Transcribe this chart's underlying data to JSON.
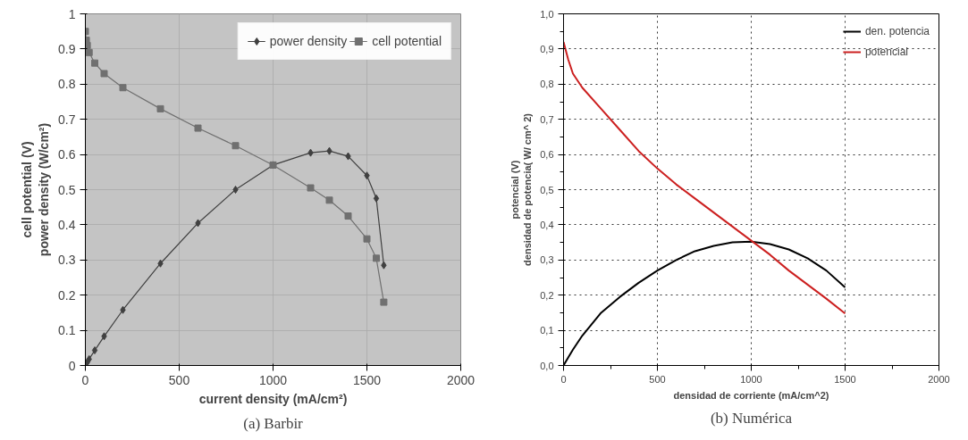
{
  "chart_data": [
    {
      "type": "line",
      "title": "(a) Barbir",
      "xlabel": "current density (mA/cm²)",
      "ylabel": "cell potential (V)\npower density (W/cm²)",
      "x": [
        0,
        5,
        10,
        20,
        50,
        100,
        200,
        400,
        600,
        800,
        1000,
        1200,
        1300,
        1400,
        1500,
        1550,
        1590
      ],
      "series": [
        {
          "name": "power density",
          "color": "#404040",
          "marker": "diamond",
          "values": [
            0,
            0.005,
            0.009,
            0.018,
            0.043,
            0.083,
            0.158,
            0.29,
            0.405,
            0.5,
            0.57,
            0.605,
            0.61,
            0.595,
            0.54,
            0.475,
            0.285
          ]
        },
        {
          "name": "cell potential",
          "color": "#707070",
          "marker": "square",
          "values": [
            0.95,
            0.925,
            0.91,
            0.89,
            0.86,
            0.83,
            0.79,
            0.73,
            0.675,
            0.625,
            0.57,
            0.505,
            0.47,
            0.425,
            0.36,
            0.305,
            0.18
          ]
        }
      ],
      "xlim": [
        0,
        2000
      ],
      "ylim": [
        0,
        1
      ],
      "xticks": [
        0,
        500,
        1000,
        1500,
        2000
      ],
      "yticks": [
        0,
        0.1,
        0.2,
        0.3,
        0.4,
        0.5,
        0.6,
        0.7,
        0.8,
        0.9,
        1
      ],
      "grid": true,
      "legend": "top right",
      "line_style": "solid"
    },
    {
      "type": "line",
      "title": "(b) Numérica",
      "xlabel": "densidad de corriente (mA/cm^2)",
      "ylabel": "potencial (V)\ndensidad de potencia( W/ cm^ 2)",
      "x": [
        0,
        25,
        50,
        100,
        200,
        300,
        400,
        500,
        600,
        700,
        800,
        900,
        1000,
        1100,
        1200,
        1300,
        1400,
        1500
      ],
      "series": [
        {
          "name": "den. potencia",
          "color": "#000000",
          "values": [
            0,
            0.023,
            0.045,
            0.085,
            0.15,
            0.195,
            0.235,
            0.27,
            0.3,
            0.325,
            0.34,
            0.35,
            0.352,
            0.345,
            0.33,
            0.305,
            0.27,
            0.222
          ]
        },
        {
          "name": "potencial",
          "color": "#cc2020",
          "values": [
            0.92,
            0.87,
            0.83,
            0.79,
            0.73,
            0.67,
            0.61,
            0.56,
            0.515,
            0.475,
            0.435,
            0.395,
            0.355,
            0.315,
            0.27,
            0.23,
            0.19,
            0.148
          ]
        }
      ],
      "xlim": [
        0,
        2000
      ],
      "ylim": [
        0,
        1
      ],
      "xticks": [
        0,
        500,
        1000,
        1500,
        2000
      ],
      "yticks": [
        {
          "value": 0,
          "label": "0,0"
        },
        {
          "value": 0.1,
          "label": "0,1"
        },
        {
          "value": 0.2,
          "label": "0,2"
        },
        {
          "value": 0.3,
          "label": "0,3"
        },
        {
          "value": 0.4,
          "label": "0,4"
        },
        {
          "value": 0.5,
          "label": "0,5"
        },
        {
          "value": 0.6,
          "label": "0,6"
        },
        {
          "value": 0.7,
          "label": "0,7"
        },
        {
          "value": 0.8,
          "label": "0,8"
        },
        {
          "value": 0.9,
          "label": "0,9"
        },
        {
          "value": 1,
          "label": "1,0"
        }
      ],
      "grid": true,
      "legend": "top right",
      "marker": "none",
      "line_style": "solid"
    }
  ]
}
